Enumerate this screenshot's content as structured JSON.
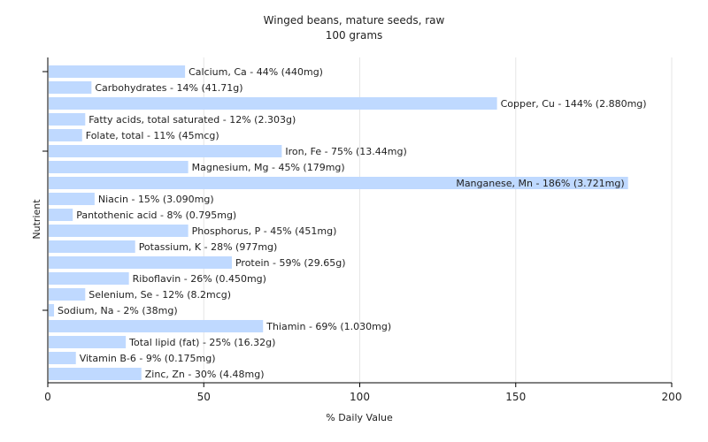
{
  "chart_data": {
    "type": "bar",
    "orientation": "horizontal",
    "title": "Winged beans, mature seeds, raw",
    "subtitle": "100 grams",
    "xlabel": "% Daily Value",
    "ylabel": "Nutrient",
    "xlim": [
      0,
      200
    ],
    "xticks": [
      "0",
      "50",
      "100",
      "150",
      "200"
    ],
    "grid": "vertical",
    "bar_color": "#bfd9ff",
    "categories": [
      "Calcium, Ca",
      "Carbohydrates",
      "Copper, Cu",
      "Fatty acids, total saturated",
      "Folate, total",
      "Iron, Fe",
      "Magnesium, Mg",
      "Manganese, Mn",
      "Niacin",
      "Pantothenic acid",
      "Phosphorus, P",
      "Potassium, K",
      "Protein",
      "Riboflavin",
      "Selenium, Se",
      "Sodium, Na",
      "Thiamin",
      "Total lipid (fat)",
      "Vitamin B-6",
      "Zinc, Zn"
    ],
    "values": [
      44,
      14,
      144,
      12,
      11,
      75,
      45,
      186,
      15,
      8,
      45,
      28,
      59,
      26,
      12,
      2,
      69,
      25,
      9,
      30
    ],
    "labels": [
      "Calcium, Ca - 44% (440mg)",
      "Carbohydrates - 14% (41.71g)",
      "Copper, Cu - 144% (2.880mg)",
      "Fatty acids, total saturated - 12% (2.303g)",
      "Folate, total - 11% (45mcg)",
      "Iron, Fe - 75% (13.44mg)",
      "Magnesium, Mg - 45% (179mg)",
      "Manganese, Mn - 186% (3.721mg)",
      "Niacin - 15% (3.090mg)",
      "Pantothenic acid - 8% (0.795mg)",
      "Phosphorus, P - 45% (451mg)",
      "Potassium, K - 28% (977mg)",
      "Protein - 59% (29.65g)",
      "Riboflavin - 26% (0.450mg)",
      "Selenium, Se - 12% (8.2mcg)",
      "Sodium, Na - 2% (38mg)",
      "Thiamin - 69% (1.030mg)",
      "Total lipid (fat) - 25% (16.32g)",
      "Vitamin B-6 - 9% (0.175mg)",
      "Zinc, Zn - 30% (4.48mg)"
    ]
  }
}
